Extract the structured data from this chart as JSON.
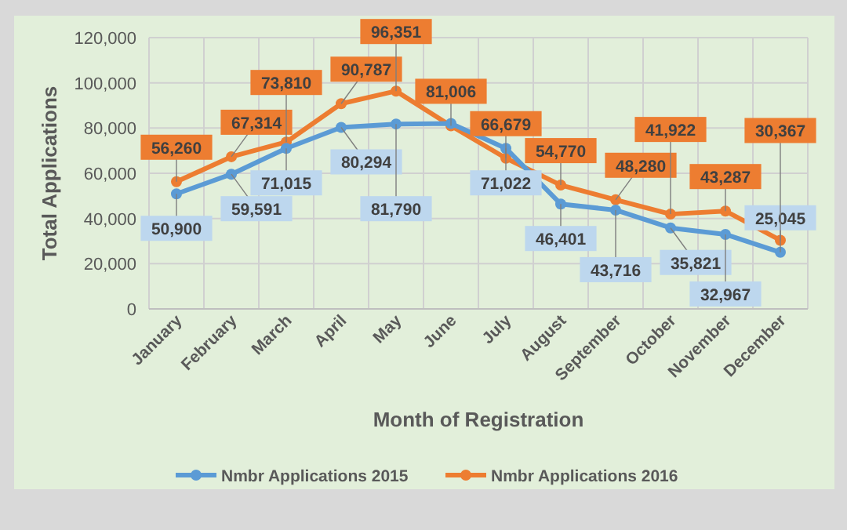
{
  "chart_data": {
    "type": "line",
    "xlabel": "Month of Registration",
    "ylabel": "Total Applications",
    "categories": [
      "January",
      "February",
      "March",
      "April",
      "May",
      "June",
      "July",
      "August",
      "September",
      "October",
      "November",
      "December"
    ],
    "series": [
      {
        "name": "Nmbr Applications 2015",
        "color": "#5b9bd5",
        "values": [
          50900,
          59591,
          71015,
          80294,
          81790,
          82000,
          71022,
          46401,
          43716,
          35821,
          32967,
          25045
        ],
        "value_labels": [
          "50,900",
          "59,591",
          "71,015",
          "80,294",
          "81,790",
          null,
          "71,022",
          "46,401",
          "43,716",
          "35,821",
          "32,967",
          "25,045"
        ]
      },
      {
        "name": "Nmbr Applications 2016",
        "color": "#ed7d31",
        "values": [
          56260,
          67314,
          73810,
          90787,
          96351,
          81006,
          66679,
          54770,
          48280,
          41922,
          43287,
          30367
        ],
        "value_labels": [
          "56,260",
          "67,314",
          "73,810",
          "90,787",
          "96,351",
          "81,006",
          "66,679",
          "54,770",
          "48,280",
          "41,922",
          "43,287",
          "30,367"
        ]
      }
    ],
    "ylim": [
      0,
      120000
    ],
    "yticks": [
      {
        "value": 0,
        "label": "0"
      },
      {
        "value": 20000,
        "label": "20,000"
      },
      {
        "value": 40000,
        "label": "40,000"
      },
      {
        "value": 60000,
        "label": "60,000"
      },
      {
        "value": 80000,
        "label": "80,000"
      },
      {
        "value": 100000,
        "label": "100,000"
      },
      {
        "value": 120000,
        "label": "120,000"
      }
    ],
    "grid": true,
    "legend": "bottom",
    "marker": "circle",
    "line_style": "solid"
  }
}
